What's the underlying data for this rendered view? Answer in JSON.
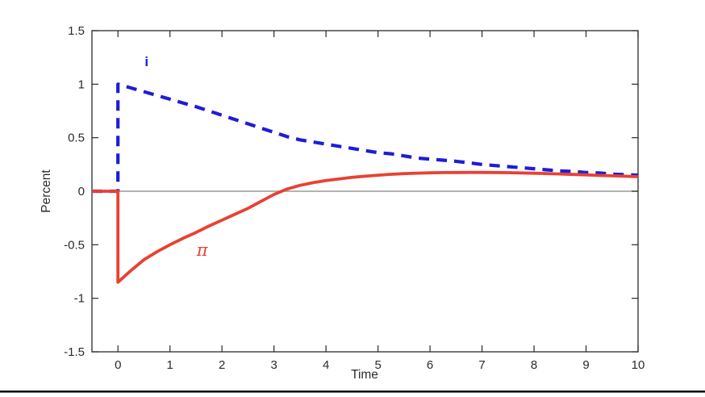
{
  "figure": {
    "background": "#ffffff",
    "axis_color": "#2b2b2b",
    "zero_line_color": "#9a9a9a",
    "bottom_border_color": "#000000"
  },
  "chart_data": {
    "type": "line",
    "title": "",
    "xlabel": "Time",
    "ylabel": "Percent",
    "xlim": [
      -0.5,
      10
    ],
    "ylim": [
      -1.5,
      1.5
    ],
    "x_ticks": [
      0,
      1,
      2,
      3,
      4,
      5,
      6,
      7,
      8,
      9,
      10
    ],
    "y_ticks": [
      -1.5,
      -1,
      -0.5,
      0,
      0.5,
      1,
      1.5
    ],
    "grid": false,
    "zero_line": true,
    "legend_position": "none",
    "x": [
      -0.5,
      0,
      0,
      0.25,
      0.5,
      0.75,
      1,
      1.25,
      1.5,
      1.75,
      2,
      2.25,
      2.5,
      2.75,
      3,
      3.25,
      3.5,
      3.75,
      4,
      4.25,
      4.5,
      4.75,
      5,
      5.25,
      5.5,
      5.75,
      6,
      6.25,
      6.5,
      6.75,
      7,
      7.25,
      7.5,
      7.75,
      8,
      8.25,
      8.5,
      8.75,
      9,
      9.25,
      9.5,
      9.75,
      10
    ],
    "series": [
      {
        "name": "i",
        "label": "i",
        "color": "#1d1dd6",
        "style": "dashed",
        "label_pos": {
          "x": 0.55,
          "y": 1.22
        },
        "values": [
          0,
          0,
          1.0,
          0.965,
          0.93,
          0.895,
          0.86,
          0.825,
          0.79,
          0.75,
          0.71,
          0.67,
          0.63,
          0.59,
          0.55,
          0.51,
          0.48,
          0.46,
          0.44,
          0.42,
          0.4,
          0.38,
          0.36,
          0.35,
          0.33,
          0.31,
          0.3,
          0.29,
          0.28,
          0.265,
          0.25,
          0.24,
          0.23,
          0.22,
          0.21,
          0.2,
          0.19,
          0.185,
          0.175,
          0.17,
          0.16,
          0.155,
          0.15
        ]
      },
      {
        "name": "pi",
        "label": "π",
        "color": "#e84133",
        "style": "solid",
        "label_pos": {
          "x": 1.62,
          "y": -0.55
        },
        "values": [
          0,
          0,
          -0.85,
          -0.74,
          -0.64,
          -0.565,
          -0.5,
          -0.44,
          -0.385,
          -0.325,
          -0.27,
          -0.215,
          -0.16,
          -0.095,
          -0.03,
          0.02,
          0.055,
          0.08,
          0.1,
          0.115,
          0.13,
          0.14,
          0.15,
          0.158,
          0.164,
          0.169,
          0.172,
          0.174,
          0.175,
          0.176,
          0.176,
          0.175,
          0.173,
          0.171,
          0.168,
          0.165,
          0.161,
          0.157,
          0.153,
          0.148,
          0.144,
          0.14,
          0.136
        ]
      }
    ]
  }
}
